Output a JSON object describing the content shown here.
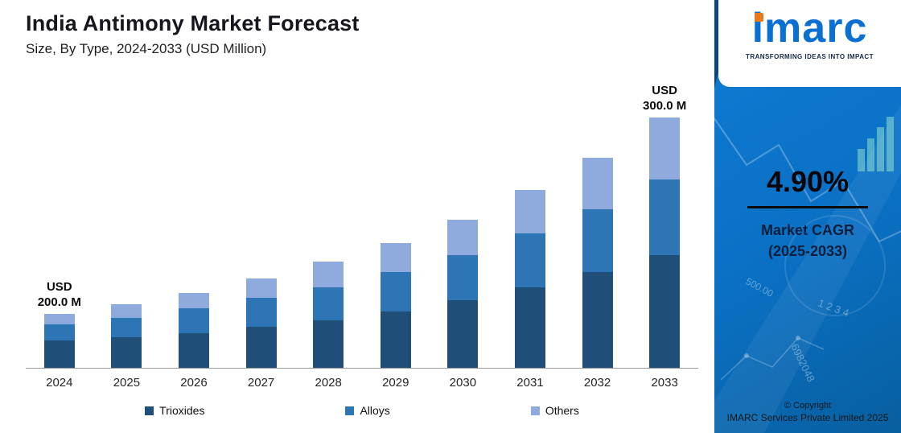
{
  "chart_data": {
    "type": "bar",
    "stacked": true,
    "title": "India Antimony Market Forecast",
    "subtitle": "Size, By Type, 2024-2033 (USD Million)",
    "unit": "USD Million",
    "value_axis": "none",
    "legend_position": "bottom",
    "categories": [
      "2024",
      "2025",
      "2026",
      "2027",
      "2028",
      "2029",
      "2030",
      "2031",
      "2032",
      "2033"
    ],
    "series": [
      {
        "name": "Trioxides",
        "color": "#1f4e79",
        "values": [
          34,
          38,
          43,
          51,
          59,
          70,
          84,
          100,
          119,
          140
        ]
      },
      {
        "name": "Alloys",
        "color": "#2e75b6",
        "values": [
          20,
          24,
          31,
          36,
          41,
          49,
          56,
          67,
          78,
          94
        ]
      },
      {
        "name": "Others",
        "color": "#8faadc",
        "values": [
          13,
          17,
          19,
          24,
          32,
          36,
          44,
          54,
          64,
          77
        ]
      }
    ],
    "values_note": "Series values are relative bar heights as depicted; chart shows no value axis. Only 2024 and 2033 totals are labeled.",
    "labeled_totals": [
      {
        "category": "2024",
        "value": 200.0,
        "label_lines": [
          "USD",
          "200.0 M"
        ]
      },
      {
        "category": "2033",
        "value": 300.0,
        "label_lines": [
          "USD",
          "300.0 M"
        ]
      }
    ],
    "estimated_totals_usd_million": [
      200.0,
      204.6,
      214.6,
      225.1,
      236.1,
      247.7,
      259.8,
      272.6,
      286.0,
      300.0
    ]
  },
  "sidebar": {
    "logo_text": "imarc",
    "tagline": "TRANSFORMING IDEAS INTO IMPACT",
    "cagr_value": "4.90%",
    "cagr_label_line1": "Market CAGR",
    "cagr_label_line2": "(2025-2033)",
    "copyright_line1": "© Copyright",
    "copyright_line2": "IMARC Services Private Limited 2025",
    "accent_blue": "#0a70c4",
    "logo_blue": "#0a70d1",
    "logo_dot_orange": "#e87a1e",
    "watermark": [
      "6982048",
      "500.00",
      "1 2 3 4"
    ]
  }
}
